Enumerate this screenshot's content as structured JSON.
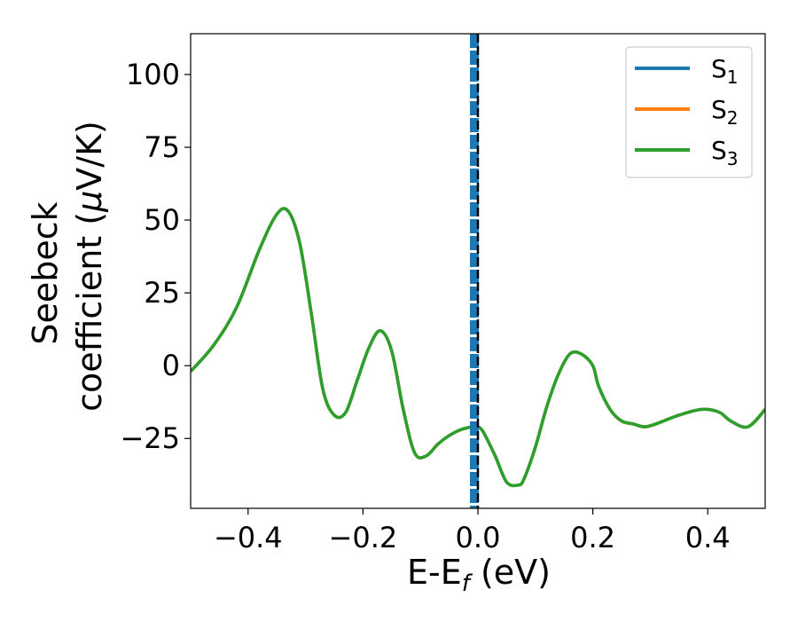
{
  "chart_data": {
    "type": "line",
    "title": "",
    "xlabel": "E-E",
    "xlabel_sub": "f",
    "xlabel_unit": " (eV)",
    "ylabel_line1": "Seebeck",
    "ylabel_line2_prefix": "coefficient  (",
    "ylabel_mu": "μ",
    "ylabel_line2_suffix": "V/K)",
    "xlim": [
      -0.5,
      0.5
    ],
    "ylim": [
      -49,
      114
    ],
    "x_ticks": [
      -0.4,
      -0.2,
      0.0,
      0.2,
      0.4
    ],
    "x_tick_labels": [
      "−0.4",
      "−0.2",
      "0.0",
      "0.2",
      "0.4"
    ],
    "y_ticks": [
      -25,
      0,
      25,
      50,
      75,
      100
    ],
    "y_tick_labels": [
      "−25",
      "0",
      "25",
      "50",
      "75",
      "100"
    ],
    "grid": false,
    "legend_position": "top-right",
    "fermi_marker_x": 0.0,
    "series": [
      {
        "name": "S",
        "sub": "1",
        "color": "#1f77b4"
      },
      {
        "name": "S",
        "sub": "2",
        "color": "#ff7f0e"
      },
      {
        "name": "S",
        "sub": "3",
        "color": "#2ca02c"
      }
    ],
    "x": [
      -0.5,
      -0.46,
      -0.42,
      -0.38,
      -0.35,
      -0.33,
      -0.31,
      -0.29,
      -0.27,
      -0.25,
      -0.23,
      -0.21,
      -0.19,
      -0.17,
      -0.15,
      -0.13,
      -0.11,
      -0.09,
      -0.07,
      -0.05,
      -0.03,
      -0.01,
      0.0,
      0.01,
      0.03,
      0.05,
      0.07,
      0.08,
      0.1,
      0.12,
      0.14,
      0.16,
      0.18,
      0.2,
      0.21,
      0.23,
      0.25,
      0.27,
      0.29,
      0.31,
      0.35,
      0.39,
      0.42,
      0.44,
      0.47,
      0.5
    ],
    "values": [
      -2,
      7,
      20,
      40,
      52,
      53,
      42,
      18,
      -8,
      -17,
      -16,
      -5,
      6,
      12,
      5,
      -15,
      -30,
      -31,
      -27,
      -24,
      -22,
      -21,
      -21,
      -23,
      -31,
      -40,
      -41,
      -39,
      -28,
      -14,
      -3,
      4,
      4,
      0,
      -7,
      -15,
      -19,
      -20,
      -21,
      -20,
      -17,
      -15,
      -16,
      -19,
      -21,
      -15
    ]
  }
}
